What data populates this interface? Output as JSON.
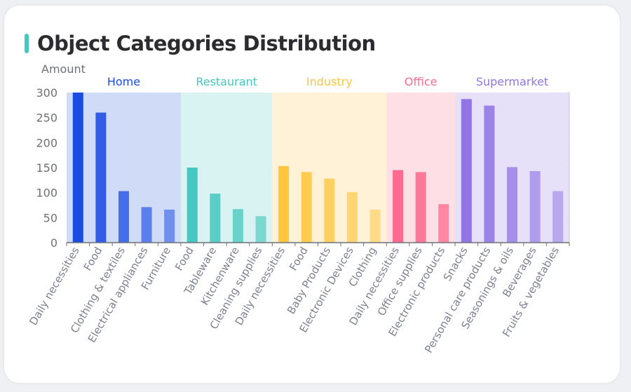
{
  "title": "Object Categories Distribution",
  "chart_data": {
    "type": "bar",
    "title": "Object Categories Distribution",
    "ylabel": "Amount",
    "xlabel": "",
    "ylim": [
      0,
      300
    ],
    "yticks": [
      0,
      50,
      100,
      150,
      200,
      250,
      300
    ],
    "grid": false,
    "groups": [
      {
        "name": "Home",
        "color": "#1a4be3",
        "band": "#d0dbf8",
        "categories": [
          "Daily necessities",
          "Food",
          "Clothing & textiles",
          "Electrical appliances",
          "Furniture"
        ],
        "values": [
          300,
          260,
          103,
          71,
          66
        ]
      },
      {
        "name": "Restaurant",
        "color": "#45c8bf",
        "band": "#d9f3f2",
        "categories": [
          "Food",
          "Tableware",
          "Kitchenware",
          "Cleaning supplies"
        ],
        "values": [
          150,
          98,
          67,
          53
        ]
      },
      {
        "name": "Industry",
        "color": "#ffc53d",
        "band": "#fff2d6",
        "categories": [
          "Daily necessities",
          "Food",
          "Baby Products",
          "Electronic Devices",
          "Clothing"
        ],
        "values": [
          153,
          141,
          128,
          101,
          66
        ]
      },
      {
        "name": "Office",
        "color": "#ff6a8e",
        "band": "#ffdfe6",
        "categories": [
          "Daily necessities",
          "Office supplies",
          "Electronic products"
        ],
        "values": [
          145,
          141,
          77
        ]
      },
      {
        "name": "Supermarket",
        "color": "#9175e5",
        "band": "#e6e0f8",
        "categories": [
          "Snacks",
          "Personal care products",
          "Seasonings & oils",
          "Beverages",
          "Fruits & vegetables"
        ],
        "values": [
          287,
          274,
          151,
          143,
          103
        ]
      }
    ]
  }
}
